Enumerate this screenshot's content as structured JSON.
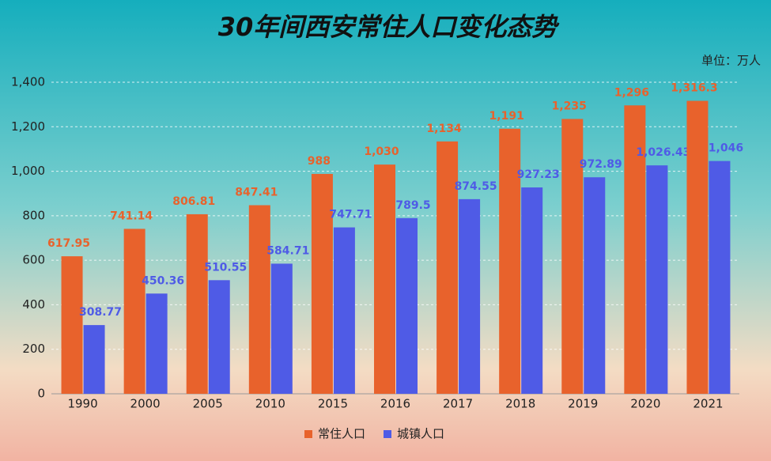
{
  "chart_data": {
    "type": "bar",
    "title": "30年间西安常住人口变化态势",
    "unit": "单位：万人",
    "categories": [
      "1990",
      "2000",
      "2005",
      "2010",
      "2015",
      "2016",
      "2017",
      "2018",
      "2019",
      "2020",
      "2021"
    ],
    "series": [
      {
        "name": "常住人口",
        "color": "#e8622c",
        "values": [
          617.95,
          741.14,
          806.81,
          847.41,
          988,
          1030,
          1134,
          1191,
          1235,
          1296,
          1316.3
        ],
        "value_labels": [
          "617.95",
          "741.14",
          "806.81",
          "847.41",
          "988",
          "1,030",
          "1,134",
          "1,191",
          "1,235",
          "1,296",
          "1,316.3"
        ]
      },
      {
        "name": "城镇人口",
        "color": "#4f5be6",
        "values": [
          308.77,
          450.36,
          510.55,
          584.71,
          747.71,
          789.5,
          874.55,
          927.23,
          972.89,
          1026.43,
          1046
        ],
        "value_labels": [
          "308.77",
          "450.36",
          "510.55",
          "584.71",
          "747.71",
          "789.5",
          "874.55",
          "927.23",
          "972.89",
          "1,026.43",
          "1,046"
        ]
      }
    ],
    "ylim": [
      0,
      1400
    ],
    "yticks": [
      0,
      200,
      400,
      600,
      800,
      {
        "value": 1000,
        "label": "1,000"
      },
      {
        "value": 1200,
        "label": "1,200"
      },
      {
        "value": 1400,
        "label": "1,400"
      }
    ],
    "grid": true
  }
}
